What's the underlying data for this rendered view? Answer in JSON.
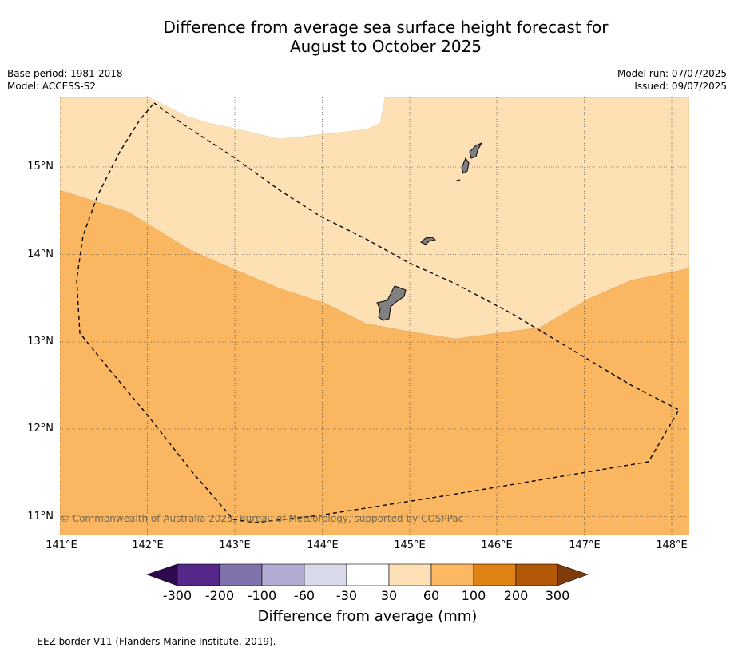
{
  "title": {
    "line1": "Difference from average sea surface height forecast for",
    "line2": "August to October 2025"
  },
  "meta": {
    "base_period": "Base period: 1981-2018",
    "model": "Model: ACCESS-S2",
    "model_run": "Model run: 07/07/2025",
    "issued": "Issued: 09/07/2025"
  },
  "map": {
    "lon_ticks": [
      "141°E",
      "142°E",
      "143°E",
      "144°E",
      "145°E",
      "146°E",
      "147°E",
      "148°E"
    ],
    "lat_ticks": [
      "15°N",
      "14°N",
      "13°N",
      "12°N",
      "11°N"
    ],
    "copyright": "© Commonwealth of Australia 2025, Bureau of Meteorology, supported by COSPPac",
    "fill_colors": {
      "light_band_30_60": "#fde0b4",
      "band_60_100": "#fab661",
      "land": "#808080"
    }
  },
  "colorbar": {
    "ticks": [
      "-300",
      "-200",
      "-100",
      "-60",
      "-30",
      "30",
      "60",
      "100",
      "200",
      "300"
    ],
    "colors": [
      "#2d0a4e",
      "#542788",
      "#8073ac",
      "#b2abd2",
      "#d8daeb",
      "#ffffff",
      "#fee0b6",
      "#fdb863",
      "#e08214",
      "#b35806",
      "#7f3b08"
    ],
    "label": "Difference from average (mm)"
  },
  "footnote": "--  --  -- EEZ border V11 (Flanders Marine Institute, 2019)."
}
